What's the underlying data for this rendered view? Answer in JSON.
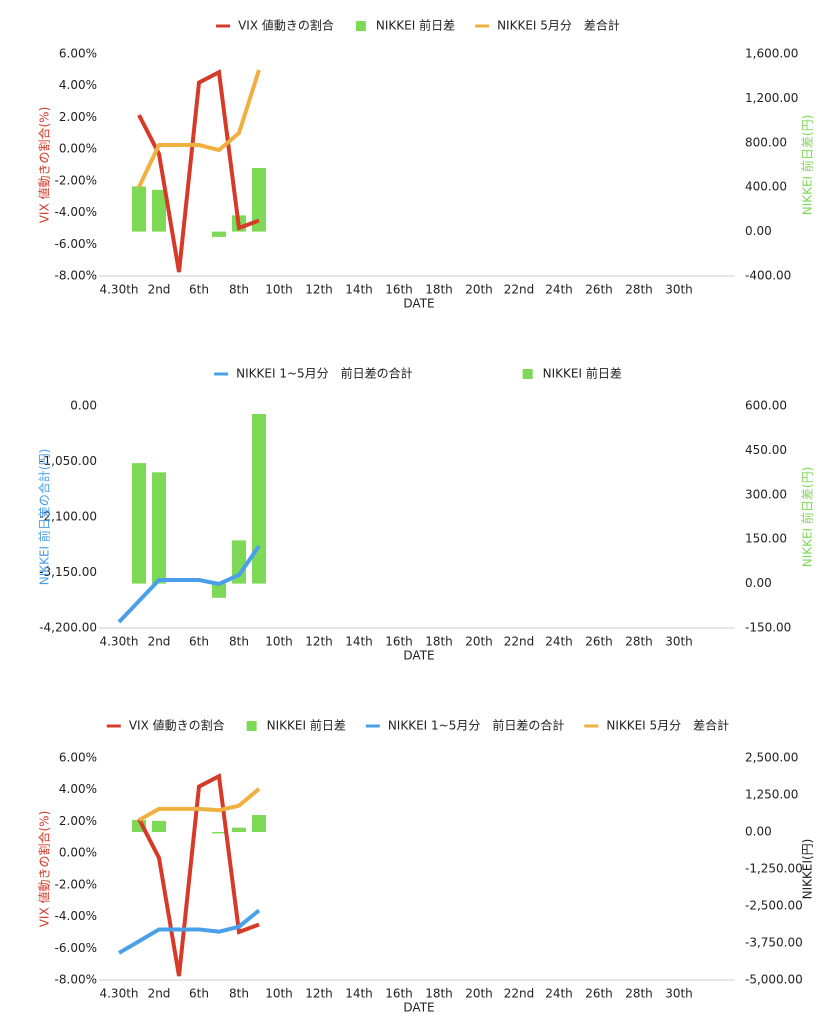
{
  "chart_data": [
    {
      "type": "combo",
      "categories": [
        "4.30th",
        null,
        "2nd",
        null,
        "6th",
        null,
        "8th",
        null,
        "10th",
        null,
        "12th",
        null,
        "14th",
        null,
        "16th",
        null,
        "18th",
        null,
        "20th",
        null,
        "22nd",
        null,
        "24th",
        null,
        "26th",
        null,
        "28th",
        null,
        "30th",
        null,
        null
      ],
      "x_label": "DATE",
      "y_label": "VIX 値動きの割合(%)",
      "y2_label": "NIKKEI 前日差(円)",
      "ylim": [
        -8,
        6
      ],
      "yticks": [
        {
          "value": -8,
          "label": "-8.00%"
        },
        {
          "value": -6,
          "label": "-6.00%"
        },
        {
          "value": -4,
          "label": "-4.00%"
        },
        {
          "value": -2,
          "label": "-2.00%"
        },
        {
          "value": 0,
          "label": "0.00%"
        },
        {
          "value": 2,
          "label": "2.00%"
        },
        {
          "value": 4,
          "label": "4.00%"
        },
        {
          "value": 6,
          "label": "6.00%"
        }
      ],
      "y2lim": [
        -400,
        1600
      ],
      "y2ticks": [
        {
          "value": -400,
          "label": "-400.00"
        },
        {
          "value": 0,
          "label": "0.00"
        },
        {
          "value": 400,
          "label": "400.00"
        },
        {
          "value": 800,
          "label": "800.00"
        },
        {
          "value": 1200,
          "label": "1,200.00"
        },
        {
          "value": 1600,
          "label": "1,600.00"
        }
      ],
      "series": [
        {
          "name": "VIX 値動きの割合",
          "kind": "line",
          "color": "#d63b2a",
          "values": [
            null,
            2.15,
            -0.3,
            -7.75,
            4.2,
            4.85,
            -4.97,
            -4.5,
            null,
            null,
            null,
            null,
            null,
            null,
            null,
            null,
            null,
            null,
            null,
            null,
            null,
            null,
            null,
            null,
            null,
            null,
            null,
            null,
            null,
            null,
            null
          ]
        },
        {
          "name": "NIKKEI 前日差",
          "kind": "bar",
          "axis": "y2",
          "color": "#7ed957",
          "values": [
            null,
            407,
            376,
            null,
            null,
            -48,
            146,
            573,
            null,
            null,
            null,
            null,
            null,
            null,
            null,
            null,
            null,
            null,
            null,
            null,
            null,
            null,
            null,
            null,
            null,
            null,
            null,
            null,
            null,
            null,
            null
          ]
        },
        {
          "name": "NIKKEI 5月分　差合計",
          "kind": "line",
          "axis": "y2",
          "color": "#f0b040",
          "values": [
            null,
            402,
            780,
            780,
            780,
            735,
            888,
            1456,
            null,
            null,
            null,
            null,
            null,
            null,
            null,
            null,
            null,
            null,
            null,
            null,
            null,
            null,
            null,
            null,
            null,
            null,
            null,
            null,
            null,
            null,
            null
          ]
        }
      ]
    },
    {
      "type": "combo",
      "categories": [
        "4.30th",
        null,
        "2nd",
        null,
        "6th",
        null,
        "8th",
        null,
        "10th",
        null,
        "12th",
        null,
        "14th",
        null,
        "16th",
        null,
        "18th",
        null,
        "20th",
        null,
        "22nd",
        null,
        "24th",
        null,
        "26th",
        null,
        "28th",
        null,
        "30th",
        null,
        null
      ],
      "x_label": "DATE",
      "y_label": "NIKKEI 前日差の合計(円)",
      "y2_label": "NIKKEI 前日差(円)",
      "ylim": [
        -4200,
        0
      ],
      "yticks": [
        {
          "value": -4200,
          "label": "-4,200.00"
        },
        {
          "value": -3150,
          "label": "-3,150.00"
        },
        {
          "value": -2100,
          "label": "-2,100.00"
        },
        {
          "value": -1050,
          "label": "-1,050.00"
        },
        {
          "value": 0,
          "label": "0.00"
        }
      ],
      "y2lim": [
        -150,
        600
      ],
      "y2ticks": [
        {
          "value": -150,
          "label": "-150.00"
        },
        {
          "value": 0,
          "label": "0.00"
        },
        {
          "value": 150,
          "label": "150.00"
        },
        {
          "value": 300,
          "label": "300.00"
        },
        {
          "value": 450,
          "label": "450.00"
        },
        {
          "value": 600,
          "label": "600.00"
        }
      ],
      "series": [
        {
          "name": "NIKKEI 1~5月分　前日差の合計",
          "kind": "line",
          "color": "#4aa0e8",
          "values": [
            -4086,
            -3690,
            -3292,
            -3292,
            -3292,
            -3367,
            -3197,
            -2649,
            null,
            null,
            null,
            null,
            null,
            null,
            null,
            null,
            null,
            null,
            null,
            null,
            null,
            null,
            null,
            null,
            null,
            null,
            null,
            null,
            null,
            null,
            null
          ]
        },
        {
          "name": "NIKKEI 前日差",
          "kind": "bar",
          "axis": "y2",
          "color": "#7ed957",
          "values": [
            null,
            407,
            376,
            null,
            null,
            -48,
            146,
            573,
            null,
            null,
            null,
            null,
            null,
            null,
            null,
            null,
            null,
            null,
            null,
            null,
            null,
            null,
            null,
            null,
            null,
            null,
            null,
            null,
            null,
            null,
            null
          ]
        }
      ]
    },
    {
      "type": "combo",
      "categories": [
        "4.30th",
        null,
        "2nd",
        null,
        "6th",
        null,
        "8th",
        null,
        "10th",
        null,
        "12th",
        null,
        "14th",
        null,
        "16th",
        null,
        "18th",
        null,
        "20th",
        null,
        "22nd",
        null,
        "24th",
        null,
        "26th",
        null,
        "28th",
        null,
        "30th",
        null,
        null
      ],
      "x_label": "DATE",
      "y_label": "VIX 値動きの割合(%)",
      "y2_label": "NIKKEI(円)",
      "ylim": [
        -8,
        6
      ],
      "yticks": [
        {
          "value": -8,
          "label": "-8.00%"
        },
        {
          "value": -6,
          "label": "-6.00%"
        },
        {
          "value": -4,
          "label": "-4.00%"
        },
        {
          "value": -2,
          "label": "-2.00%"
        },
        {
          "value": 0,
          "label": "0.00%"
        },
        {
          "value": 2,
          "label": "2.00%"
        },
        {
          "value": 4,
          "label": "4.00%"
        },
        {
          "value": 6,
          "label": "6.00%"
        }
      ],
      "y2lim": [
        -5000,
        2500
      ],
      "y2ticks": [
        {
          "value": -5000,
          "label": "-5,000.00"
        },
        {
          "value": -3750,
          "label": "-3,750.00"
        },
        {
          "value": -2500,
          "label": "-2,500.00"
        },
        {
          "value": -1250,
          "label": "-1,250.00"
        },
        {
          "value": 0,
          "label": "0.00"
        },
        {
          "value": 1250,
          "label": "1,250.00"
        },
        {
          "value": 2500,
          "label": "2,500.00"
        }
      ],
      "series": [
        {
          "name": "VIX 値動きの割合",
          "kind": "line",
          "color": "#d63b2a",
          "values": [
            null,
            2.15,
            -0.3,
            -7.75,
            4.2,
            4.85,
            -4.97,
            -4.5,
            null,
            null,
            null,
            null,
            null,
            null,
            null,
            null,
            null,
            null,
            null,
            null,
            null,
            null,
            null,
            null,
            null,
            null,
            null,
            null,
            null,
            null,
            null
          ]
        },
        {
          "name": "NIKKEI 前日差",
          "kind": "bar",
          "axis": "y2",
          "color": "#7ed957",
          "values": [
            null,
            407,
            376,
            null,
            null,
            -48,
            146,
            573,
            null,
            null,
            null,
            null,
            null,
            null,
            null,
            null,
            null,
            null,
            null,
            null,
            null,
            null,
            null,
            null,
            null,
            null,
            null,
            null,
            null,
            null,
            null
          ]
        },
        {
          "name": "NIKKEI 1~5月分　前日差の合計",
          "kind": "line",
          "axis": "y2",
          "color": "#4aa0e8",
          "values": [
            -4086,
            -3690,
            -3292,
            -3292,
            -3292,
            -3367,
            -3197,
            -2649,
            null,
            null,
            null,
            null,
            null,
            null,
            null,
            null,
            null,
            null,
            null,
            null,
            null,
            null,
            null,
            null,
            null,
            null,
            null,
            null,
            null,
            null,
            null
          ]
        },
        {
          "name": "NIKKEI 5月分　差合計",
          "kind": "line",
          "axis": "y2",
          "color": "#f0b040",
          "values": [
            null,
            402,
            780,
            780,
            780,
            735,
            888,
            1456,
            null,
            null,
            null,
            null,
            null,
            null,
            null,
            null,
            null,
            null,
            null,
            null,
            null,
            null,
            null,
            null,
            null,
            null,
            null,
            null,
            null,
            null,
            null
          ]
        }
      ]
    }
  ]
}
